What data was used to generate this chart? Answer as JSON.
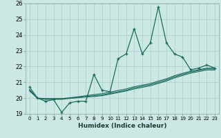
{
  "title": "",
  "xlabel": "Humidex (Indice chaleur)",
  "xlim": [
    -0.5,
    23.5
  ],
  "ylim": [
    19,
    26
  ],
  "yticks": [
    19,
    20,
    21,
    22,
    23,
    24,
    25,
    26
  ],
  "xticks": [
    0,
    1,
    2,
    3,
    4,
    5,
    6,
    7,
    8,
    9,
    10,
    11,
    12,
    13,
    14,
    15,
    16,
    17,
    18,
    19,
    20,
    21,
    22,
    23
  ],
  "bg_color": "#cce8e5",
  "line_color": "#1a6b5a",
  "grid_color": "#aaccca",
  "line1_y": [
    20.7,
    20.0,
    19.8,
    19.9,
    19.1,
    19.7,
    19.8,
    19.8,
    21.5,
    20.5,
    20.4,
    22.5,
    22.8,
    24.4,
    22.8,
    23.5,
    25.8,
    23.5,
    22.8,
    22.6,
    21.8,
    21.9,
    22.1,
    21.9
  ],
  "line2_y": [
    20.5,
    20.0,
    19.95,
    19.95,
    19.95,
    20.0,
    20.05,
    20.1,
    20.15,
    20.2,
    20.3,
    20.4,
    20.5,
    20.65,
    20.75,
    20.85,
    21.0,
    21.15,
    21.35,
    21.5,
    21.65,
    21.75,
    21.85,
    21.85
  ],
  "line3_y": [
    20.55,
    20.0,
    19.97,
    19.97,
    19.97,
    20.02,
    20.08,
    20.15,
    20.22,
    20.28,
    20.38,
    20.48,
    20.58,
    20.72,
    20.82,
    20.92,
    21.08,
    21.22,
    21.42,
    21.57,
    21.7,
    21.8,
    21.9,
    21.9
  ],
  "line4_y": [
    20.45,
    19.99,
    19.92,
    19.92,
    19.92,
    19.98,
    20.02,
    20.07,
    20.1,
    20.15,
    20.25,
    20.35,
    20.45,
    20.58,
    20.68,
    20.78,
    20.93,
    21.08,
    21.28,
    21.43,
    21.58,
    21.68,
    21.78,
    21.78
  ]
}
